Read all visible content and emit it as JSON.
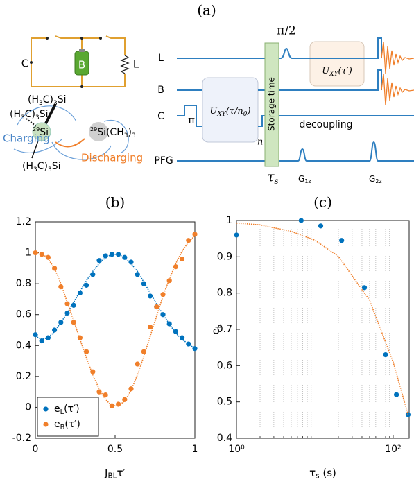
{
  "diagram": {
    "label": "(a)",
    "circuit": {
      "c": "C",
      "b": "B",
      "l": "L"
    },
    "molecule": {
      "group_top": [
        "(H",
        "3",
        "C)",
        "3",
        "Si"
      ],
      "group_left": [
        "(H",
        "3",
        "C)",
        "3",
        "Si"
      ],
      "group_bottom": [
        "(H",
        "3",
        "C)",
        "3",
        "Si"
      ],
      "center": [
        "29",
        "Si"
      ],
      "partner": [
        "29",
        "Si(CH",
        "3",
        ")",
        "3"
      ],
      "charging": "Charging",
      "discharging": "Discharging"
    },
    "sequence": {
      "channels": [
        "L",
        "B",
        "C",
        "PFG"
      ],
      "pi_half": "π/2",
      "pi": "π",
      "u_first": [
        "U",
        "XY",
        "(τ/n",
        "0",
        ")"
      ],
      "u_second": [
        "U",
        "XY",
        "(τ′)"
      ],
      "n": "n",
      "storage": "Storage time",
      "decoupling": "decoupling",
      "tau_s": [
        "τ",
        "s"
      ],
      "g1": [
        "G",
        "1z"
      ],
      "g2": [
        "G",
        "2z"
      ]
    }
  },
  "chart_data": [
    {
      "type": "scatter",
      "title": "(b)",
      "x_label": [
        "J",
        "BL",
        "τ′"
      ],
      "x": [
        0,
        0.04,
        0.08,
        0.12,
        0.16,
        0.2,
        0.24,
        0.28,
        0.32,
        0.36,
        0.4,
        0.44,
        0.48,
        0.52,
        0.56,
        0.6,
        0.64,
        0.68,
        0.72,
        0.76,
        0.8,
        0.84,
        0.88,
        0.92,
        0.96,
        1
      ],
      "series": [
        {
          "name": [
            "e",
            "L",
            "(τ′)"
          ],
          "color": "#0072bd",
          "values": [
            0.47,
            0.43,
            0.45,
            0.5,
            0.55,
            0.61,
            0.66,
            0.74,
            0.79,
            0.86,
            0.95,
            0.98,
            0.99,
            0.99,
            0.97,
            0.94,
            0.86,
            0.8,
            0.72,
            0.65,
            0.6,
            0.54,
            0.49,
            0.45,
            0.41,
            0.38
          ],
          "fit": [
            0.46,
            0.44,
            0.45,
            0.49,
            0.55,
            0.61,
            0.68,
            0.75,
            0.82,
            0.88,
            0.93,
            0.97,
            0.99,
            0.99,
            0.97,
            0.93,
            0.88,
            0.81,
            0.74,
            0.67,
            0.6,
            0.54,
            0.48,
            0.44,
            0.41,
            0.38
          ]
        },
        {
          "name": [
            "e",
            "B",
            "(τ′)"
          ],
          "color": "#f07f2a",
          "values": [
            1.0,
            0.99,
            0.97,
            0.9,
            0.78,
            0.67,
            0.55,
            0.45,
            0.36,
            0.23,
            0.1,
            0.08,
            0.01,
            0.02,
            0.05,
            0.12,
            0.28,
            0.36,
            0.52,
            0.65,
            0.73,
            0.82,
            0.91,
            0.96,
            1.08,
            1.12
          ],
          "fit": [
            1.0,
            1.0,
            0.96,
            0.9,
            0.8,
            0.68,
            0.56,
            0.44,
            0.32,
            0.21,
            0.12,
            0.05,
            0.01,
            0.01,
            0.04,
            0.11,
            0.21,
            0.33,
            0.46,
            0.59,
            0.72,
            0.83,
            0.93,
            1.01,
            1.07,
            1.11
          ]
        }
      ],
      "xlim": [
        0,
        1
      ],
      "ylim": [
        -0.2,
        1.2
      ],
      "xticks": [
        0,
        0.5,
        1
      ],
      "yticks": [
        -0.2,
        0,
        0.2,
        0.4,
        0.6,
        0.8,
        1,
        1.2
      ],
      "legend": "lower left"
    },
    {
      "type": "scatter",
      "title": "(c)",
      "x_label": [
        "τ",
        "s",
        " (s)"
      ],
      "y_label": [
        "e",
        "L"
      ],
      "xscale": "log",
      "series": [
        {
          "color": "#0072bd",
          "x": [
            1,
            6.7,
            11.9,
            22,
            43,
            80,
            110,
            155
          ],
          "values": [
            0.96,
            1.0,
            0.985,
            0.945,
            0.815,
            0.63,
            0.52,
            0.465
          ]
        }
      ],
      "fit": {
        "color": "#f07f2a",
        "x": [
          1,
          2,
          5,
          10,
          20,
          50,
          100,
          155
        ],
        "values": [
          0.993,
          0.988,
          0.97,
          0.946,
          0.901,
          0.78,
          0.61,
          0.465
        ]
      },
      "xlim": [
        1,
        160
      ],
      "ylim": [
        0.4,
        1
      ],
      "xticks": [
        {
          "value": 1,
          "label": "10⁰"
        },
        {
          "value": 100,
          "label": "10²"
        }
      ],
      "xminorticks": [
        2,
        3,
        4,
        5,
        6,
        7,
        8,
        9,
        20,
        30,
        40,
        50,
        60,
        70,
        80,
        90
      ],
      "yticks": [
        0.4,
        0.5,
        0.6,
        0.7,
        0.8,
        0.9,
        1
      ],
      "grid": "x-minor"
    }
  ]
}
